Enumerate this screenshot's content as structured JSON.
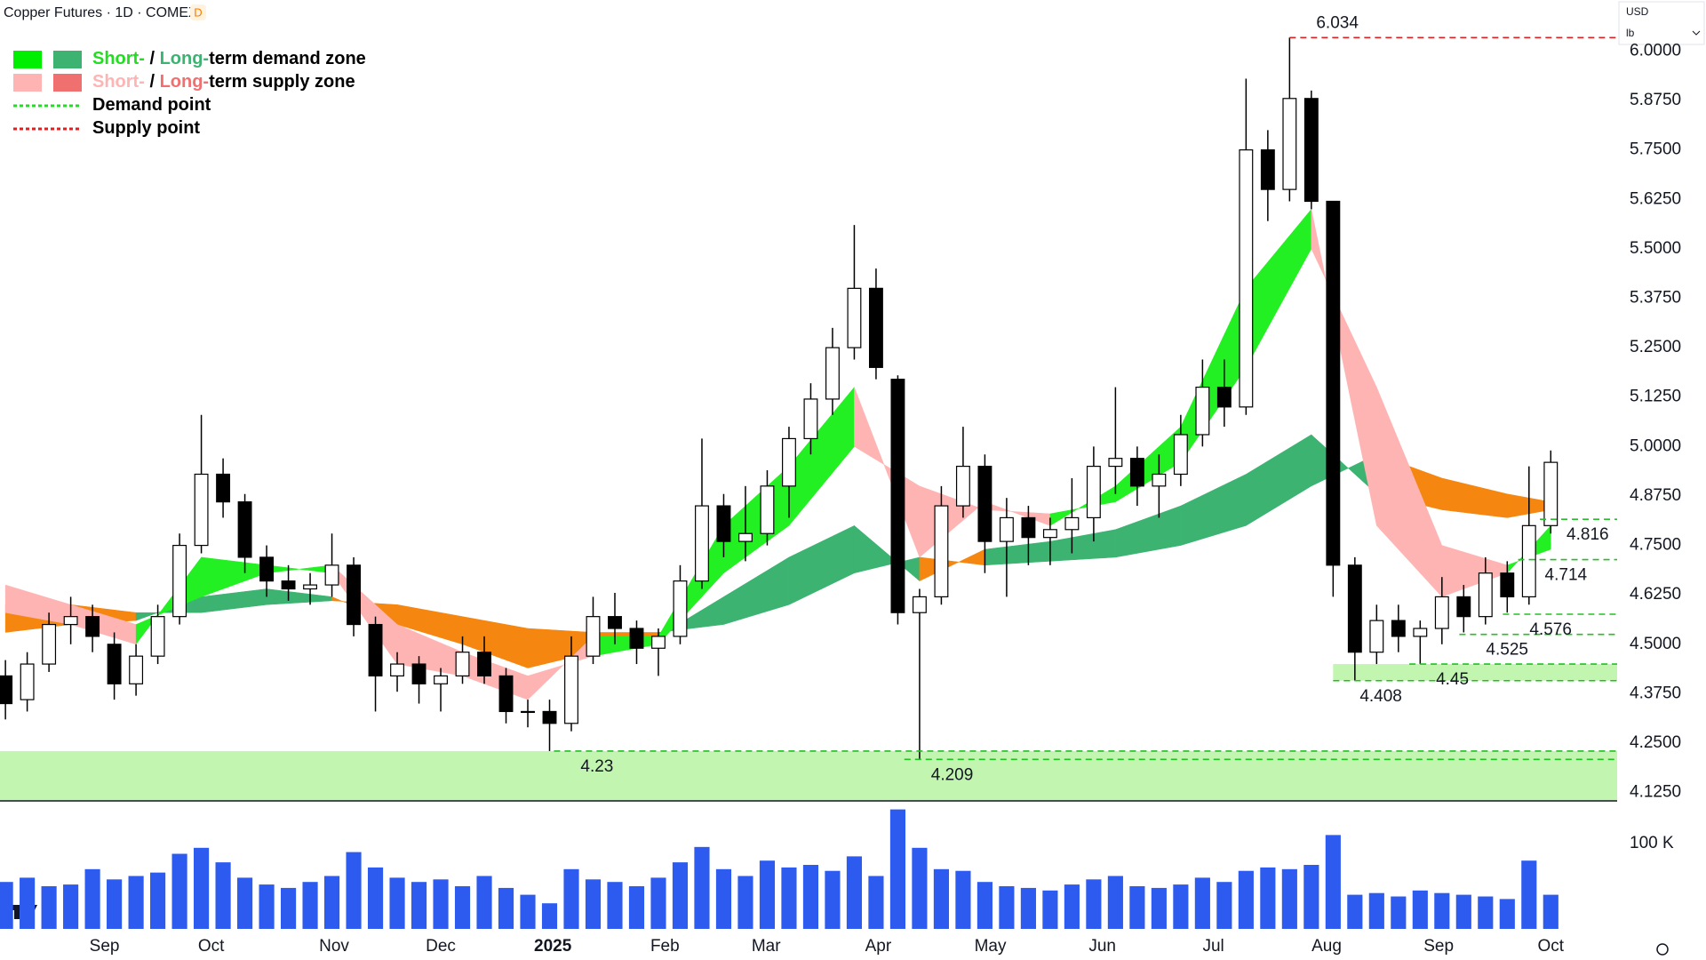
{
  "chart_data": {
    "type": "candlestick",
    "title": "Copper Futures · 1D · COMEX",
    "interval_badge": "D",
    "currency": "USD",
    "unit": "lb",
    "xlim": [
      -0.25,
      74.05
    ],
    "ylim": [
      4.104,
      6.129
    ],
    "vlim": [
      0,
      150000
    ],
    "yticks": [
      {
        "value": 4.125,
        "label": "4.1250"
      },
      {
        "value": 4.25,
        "label": "4.2500"
      },
      {
        "value": 4.375,
        "label": "4.3750"
      },
      {
        "value": 4.5,
        "label": "4.5000"
      },
      {
        "value": 4.625,
        "label": "4.6250"
      },
      {
        "value": 4.75,
        "label": "4.7500"
      },
      {
        "value": 4.875,
        "label": "4.8750"
      },
      {
        "value": 5,
        "label": "5.0000"
      },
      {
        "value": 5.125,
        "label": "5.1250"
      },
      {
        "value": 5.25,
        "label": "5.2500"
      },
      {
        "value": 5.375,
        "label": "5.3750"
      },
      {
        "value": 5.5,
        "label": "5.5000"
      },
      {
        "value": 5.625,
        "label": "5.6250"
      },
      {
        "value": 5.75,
        "label": "5.7500"
      },
      {
        "value": 5.875,
        "label": "5.8750"
      },
      {
        "value": 6,
        "label": "6.0000"
      }
    ],
    "vticks": [
      {
        "value": 100000,
        "label": "100 K"
      }
    ],
    "xticks": [
      {
        "value": 4.55,
        "label": "Sep"
      },
      {
        "value": 9.45,
        "label": "Oct"
      },
      {
        "value": 15.1,
        "label": "Nov"
      },
      {
        "value": 20,
        "label": "Dec"
      },
      {
        "value": 25.15,
        "label": "2025"
      },
      {
        "value": 30.3,
        "label": "Feb"
      },
      {
        "value": 34.95,
        "label": "Mar"
      },
      {
        "value": 40.1,
        "label": "Apr"
      },
      {
        "value": 45.25,
        "label": "May"
      },
      {
        "value": 50.4,
        "label": "Jun"
      },
      {
        "value": 55.5,
        "label": "Jul"
      },
      {
        "value": 60.7,
        "label": "Aug"
      },
      {
        "value": 65.85,
        "label": "Sep"
      },
      {
        "value": 71,
        "label": "Oct"
      }
    ],
    "open": [
      4.42,
      4.36,
      4.45,
      4.55,
      4.57,
      4.5,
      4.4,
      4.47,
      4.57,
      4.75,
      4.93,
      4.86,
      4.72,
      4.66,
      4.64,
      4.65,
      4.7,
      4.55,
      4.42,
      4.45,
      4.4,
      4.42,
      4.48,
      4.42,
      4.33,
      4.33,
      4.3,
      4.47,
      4.57,
      4.54,
      4.49,
      4.52,
      4.66,
      4.85,
      4.76,
      4.78,
      4.9,
      5.02,
      5.12,
      5.25,
      5.4,
      5.17,
      4.58,
      4.62,
      4.85,
      4.95,
      4.76,
      4.82,
      4.77,
      4.79,
      4.82,
      4.95,
      4.97,
      4.9,
      4.93,
      5.03,
      5.15,
      5.1,
      5.75,
      5.65,
      5.88,
      5.62,
      4.7,
      4.48,
      4.56,
      4.52,
      4.54,
      4.62,
      4.57,
      4.68,
      4.62,
      4.8
    ],
    "high": [
      4.46,
      4.48,
      4.58,
      4.62,
      4.6,
      4.53,
      4.5,
      4.6,
      4.78,
      5.08,
      4.97,
      4.88,
      4.75,
      4.7,
      4.68,
      4.78,
      4.72,
      4.57,
      4.48,
      4.47,
      4.44,
      4.52,
      4.52,
      4.44,
      4.36,
      4.36,
      4.52,
      4.62,
      4.63,
      4.56,
      4.54,
      4.7,
      5.02,
      4.88,
      4.9,
      4.94,
      5.05,
      5.16,
      5.3,
      5.56,
      5.45,
      5.18,
      4.64,
      4.9,
      5.05,
      4.98,
      4.87,
      4.85,
      4.82,
      4.92,
      5.0,
      5.15,
      5.0,
      4.98,
      5.08,
      5.22,
      5.22,
      5.93,
      5.8,
      6.034,
      5.9,
      5.62,
      4.72,
      4.6,
      4.6,
      4.56,
      4.67,
      4.65,
      4.72,
      4.71,
      4.95,
      4.99
    ],
    "low": [
      4.31,
      4.33,
      4.43,
      4.5,
      4.48,
      4.36,
      4.37,
      4.45,
      4.55,
      4.73,
      4.82,
      4.68,
      4.62,
      4.61,
      4.6,
      4.62,
      4.52,
      4.33,
      4.38,
      4.35,
      4.33,
      4.4,
      4.4,
      4.3,
      4.29,
      4.23,
      4.28,
      4.45,
      4.5,
      4.45,
      4.42,
      4.5,
      4.64,
      4.72,
      4.71,
      4.75,
      4.82,
      4.98,
      5.08,
      5.22,
      5.17,
      4.55,
      4.209,
      4.6,
      4.82,
      4.68,
      4.62,
      4.7,
      4.7,
      4.73,
      4.76,
      4.88,
      4.85,
      4.82,
      4.9,
      5.0,
      5.05,
      5.08,
      5.57,
      5.62,
      5.6,
      4.62,
      4.408,
      4.45,
      4.48,
      4.45,
      4.5,
      4.53,
      4.55,
      4.58,
      4.6,
      4.78
    ],
    "close": [
      4.35,
      4.45,
      4.55,
      4.57,
      4.52,
      4.4,
      4.47,
      4.57,
      4.75,
      4.93,
      4.86,
      4.72,
      4.66,
      4.64,
      4.65,
      4.7,
      4.55,
      4.42,
      4.45,
      4.4,
      4.42,
      4.48,
      4.42,
      4.33,
      4.33,
      4.3,
      4.47,
      4.57,
      4.54,
      4.49,
      4.52,
      4.66,
      4.85,
      4.76,
      4.78,
      4.9,
      5.02,
      5.12,
      5.25,
      5.4,
      5.2,
      4.58,
      4.62,
      4.85,
      4.95,
      4.76,
      4.82,
      4.77,
      4.79,
      4.82,
      4.95,
      4.97,
      4.9,
      4.93,
      5.03,
      5.15,
      5.1,
      5.75,
      5.65,
      5.88,
      5.62,
      4.7,
      4.48,
      4.56,
      4.52,
      4.54,
      4.62,
      4.57,
      4.68,
      4.62,
      4.8,
      4.96
    ],
    "volume": [
      55000,
      60000,
      50000,
      52000,
      70000,
      58000,
      62000,
      66000,
      88000,
      95000,
      78000,
      60000,
      52000,
      48000,
      55000,
      62000,
      90000,
      72000,
      60000,
      55000,
      58000,
      50000,
      62000,
      48000,
      40000,
      30000,
      70000,
      58000,
      55000,
      50000,
      60000,
      78000,
      96000,
      70000,
      62000,
      80000,
      72000,
      75000,
      68000,
      85000,
      62000,
      140000,
      95000,
      70000,
      68000,
      55000,
      50000,
      48000,
      45000,
      52000,
      58000,
      62000,
      50000,
      48000,
      52000,
      60000,
      55000,
      68000,
      72000,
      70000,
      75000,
      110000,
      40000,
      42000,
      38000,
      45000,
      42000,
      40000,
      38000,
      35000,
      80000,
      40000
    ],
    "up_color": "#ffffff",
    "down_color": "#000000",
    "volume_color": "#2d5bf0",
    "bands": {
      "x": [
        0,
        3,
        6,
        9,
        12,
        15,
        18,
        21,
        24,
        27,
        30,
        33,
        36,
        39,
        42,
        45,
        48,
        51,
        54,
        57,
        60,
        63,
        66,
        69,
        71
      ],
      "short_fast": [
        4.58,
        4.55,
        4.5,
        4.72,
        4.7,
        4.68,
        4.45,
        4.42,
        4.36,
        4.52,
        4.52,
        4.8,
        4.95,
        5.15,
        4.72,
        4.86,
        4.8,
        4.9,
        5.05,
        5.4,
        5.6,
        4.8,
        4.62,
        4.68,
        4.8
      ],
      "short_slow": [
        4.65,
        4.6,
        4.55,
        4.62,
        4.68,
        4.7,
        4.55,
        4.48,
        4.42,
        4.47,
        4.5,
        4.68,
        4.8,
        5.0,
        4.9,
        4.84,
        4.83,
        4.86,
        4.96,
        5.2,
        5.5,
        5.15,
        4.75,
        4.7,
        4.74
      ],
      "long_fast": [
        4.53,
        4.55,
        4.56,
        4.62,
        4.64,
        4.62,
        4.55,
        4.5,
        4.44,
        4.48,
        4.52,
        4.62,
        4.72,
        4.8,
        4.66,
        4.74,
        4.76,
        4.79,
        4.85,
        4.93,
        5.03,
        4.88,
        4.84,
        4.82,
        4.84
      ],
      "long_slow": [
        4.6,
        4.6,
        4.58,
        4.58,
        4.6,
        4.61,
        4.6,
        4.57,
        4.54,
        4.53,
        4.53,
        4.55,
        4.6,
        4.68,
        4.72,
        4.7,
        4.71,
        4.72,
        4.75,
        4.8,
        4.9,
        4.98,
        4.92,
        4.88,
        4.86
      ],
      "short_up": "#22f022",
      "short_down": "#ffb4b4",
      "long_up": "#3cb371",
      "long_down": "#f5860f"
    },
    "zones": [
      {
        "top": 4.23,
        "start": -0.25,
        "color": "#c2f5b0"
      },
      {
        "top": 4.45,
        "bottom": 4.408,
        "start": 61,
        "color": "#c2f5b0"
      }
    ],
    "levels": [
      {
        "value": 6.034,
        "start": 59,
        "kind": "supply"
      },
      {
        "value": 4.23,
        "start": 25.2,
        "kind": "demand"
      },
      {
        "value": 4.209,
        "start": 41.3,
        "kind": "demand"
      },
      {
        "value": 4.408,
        "start": 61,
        "kind": "demand"
      },
      {
        "value": 4.45,
        "start": 64.5,
        "kind": "demand"
      },
      {
        "value": 4.525,
        "start": 66.8,
        "kind": "demand"
      },
      {
        "value": 4.576,
        "start": 68.8,
        "kind": "demand"
      },
      {
        "value": 4.714,
        "start": 69.5,
        "kind": "demand"
      },
      {
        "value": 4.816,
        "start": 70.5,
        "kind": "demand"
      }
    ],
    "level_colors": {
      "demand": "#22c022",
      "supply": "#e02020"
    },
    "legend": [
      {
        "parts": [
          "Short-",
          " / ",
          "Long-",
          "term demand zone"
        ],
        "part_colors": [
          "#22dd22",
          "#000000",
          "#3cb371",
          "#000000"
        ],
        "swatches": [
          "#00ee00",
          "#3cb371"
        ]
      },
      {
        "parts": [
          "Short-",
          " / ",
          "Long-",
          "term supply zone"
        ],
        "part_colors": [
          "#ffb4b4",
          "#000000",
          "#f07070",
          "#000000"
        ],
        "swatches": [
          "#ffb4b4",
          "#f07070"
        ]
      },
      {
        "parts": [
          "Demand point"
        ],
        "part_colors": [
          "#000000"
        ],
        "line": "#22dd22"
      },
      {
        "parts": [
          "Supply point"
        ],
        "part_colors": [
          "#000000"
        ],
        "line": "#e02020"
      }
    ]
  }
}
